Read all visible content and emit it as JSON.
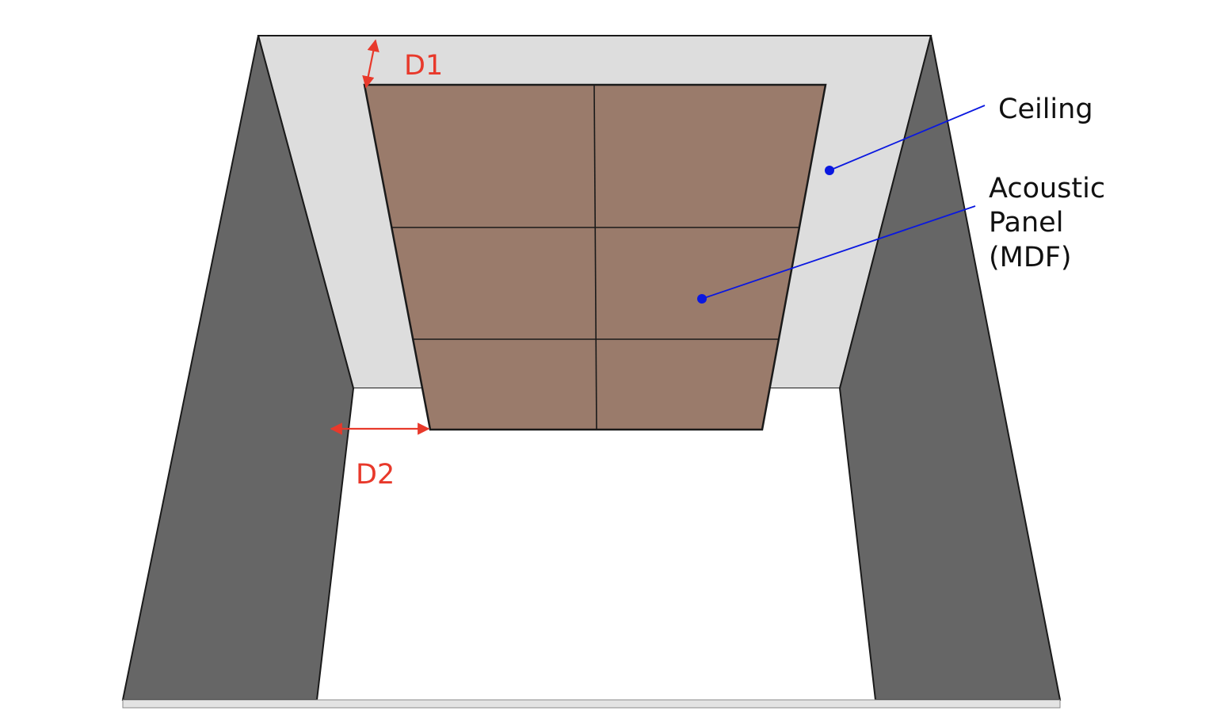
{
  "colors": {
    "ceiling": "#dddddd",
    "wall": "#666666",
    "floor": "#ffffff",
    "panel": "#9a7b6b",
    "outline": "#1a1a1a",
    "dimension": "#e8392b",
    "callout": "#0a18e0",
    "label_text": "#111111"
  },
  "dimensions": {
    "d1": {
      "label": "D1"
    },
    "d2": {
      "label": "D2"
    }
  },
  "callouts": {
    "ceiling": {
      "lines": [
        "Ceiling"
      ]
    },
    "panel": {
      "lines": [
        "Acoustic",
        "Panel",
        "(MDF)"
      ]
    }
  },
  "panel_grid": {
    "columns": 2,
    "rows": 3
  }
}
